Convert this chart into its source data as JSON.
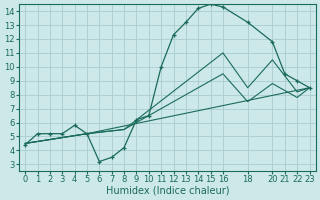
{
  "xlabel": "Humidex (Indice chaleur)",
  "background_color": "#cce8e8",
  "grid_color": "#aacccc",
  "line_color": "#1a6b5a",
  "xlim": [
    -0.5,
    23.5
  ],
  "ylim": [
    2.5,
    14.5
  ],
  "xtick_positions": [
    0,
    1,
    2,
    3,
    4,
    5,
    6,
    7,
    8,
    9,
    10,
    11,
    12,
    13,
    14,
    15,
    16,
    18,
    20,
    21,
    22,
    23
  ],
  "xtick_labels": [
    "0",
    "1",
    "2",
    "3",
    "4",
    "5",
    "6",
    "7",
    "8",
    "9",
    "10",
    "11",
    "12",
    "13",
    "14",
    "15",
    "16",
    "18",
    "20",
    "21",
    "22",
    "23"
  ],
  "yticks": [
    3,
    4,
    5,
    6,
    7,
    8,
    9,
    10,
    11,
    12,
    13,
    14
  ],
  "curve1_x": [
    0,
    1,
    2,
    3,
    4,
    5,
    6,
    7,
    8,
    9,
    10,
    11,
    12,
    13,
    14,
    15,
    16,
    18,
    20,
    21,
    22,
    23
  ],
  "curve1_y": [
    4.4,
    5.2,
    5.2,
    5.2,
    5.8,
    5.2,
    3.2,
    3.5,
    4.2,
    6.2,
    6.5,
    10.0,
    12.3,
    13.2,
    14.2,
    14.5,
    14.3,
    13.2,
    11.8,
    9.5,
    9.0,
    8.5
  ],
  "curve2_x": [
    0,
    5,
    8,
    16,
    18,
    20,
    22,
    23
  ],
  "curve2_y": [
    4.5,
    5.2,
    5.5,
    11.0,
    8.5,
    10.5,
    8.2,
    8.5
  ],
  "curve3_x": [
    0,
    5,
    8,
    16,
    18,
    20,
    22,
    23
  ],
  "curve3_y": [
    4.5,
    5.2,
    5.5,
    9.5,
    7.5,
    8.8,
    7.8,
    8.5
  ],
  "curve4_x": [
    0,
    5,
    23
  ],
  "curve4_y": [
    4.5,
    5.2,
    8.5
  ],
  "fontsize_ticks": 6,
  "fontsize_label": 7
}
